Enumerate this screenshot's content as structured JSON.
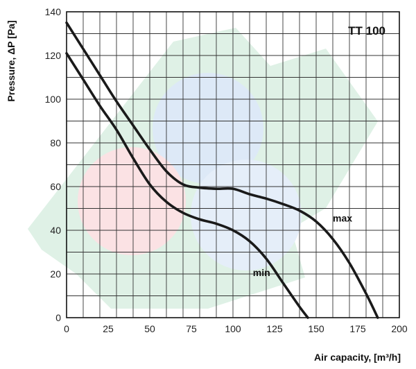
{
  "chart_data": {
    "type": "line",
    "title": "TT 100",
    "xlabel": "Air capacity, [m³/h]",
    "ylabel": "Pressure, ΔP [Pa]",
    "xlim": [
      0,
      200
    ],
    "ylim": [
      0,
      140
    ],
    "x_ticks": [
      0,
      25,
      50,
      75,
      100,
      125,
      150,
      175,
      200
    ],
    "y_ticks": [
      0,
      20,
      40,
      60,
      80,
      100,
      120,
      140
    ],
    "grid": true,
    "series": [
      {
        "name": "max",
        "color": "#1a1a1a",
        "points": [
          [
            0,
            135
          ],
          [
            10,
            123
          ],
          [
            20,
            111
          ],
          [
            30,
            99
          ],
          [
            40,
            88
          ],
          [
            50,
            77
          ],
          [
            60,
            67
          ],
          [
            70,
            61
          ],
          [
            80,
            59.5
          ],
          [
            90,
            59
          ],
          [
            100,
            59
          ],
          [
            110,
            56.5
          ],
          [
            120,
            54.5
          ],
          [
            130,
            52
          ],
          [
            140,
            49
          ],
          [
            150,
            44
          ],
          [
            160,
            36
          ],
          [
            170,
            25
          ],
          [
            180,
            11
          ],
          [
            187,
            0
          ]
        ]
      },
      {
        "name": "min",
        "color": "#1a1a1a",
        "points": [
          [
            0,
            121
          ],
          [
            10,
            109
          ],
          [
            20,
            97
          ],
          [
            30,
            86
          ],
          [
            40,
            73
          ],
          [
            50,
            61
          ],
          [
            60,
            53
          ],
          [
            70,
            48
          ],
          [
            80,
            45
          ],
          [
            90,
            43
          ],
          [
            100,
            40
          ],
          [
            110,
            35
          ],
          [
            120,
            27
          ],
          [
            130,
            16
          ],
          [
            140,
            5
          ],
          [
            145,
            0
          ]
        ]
      }
    ],
    "series_label_positions": {
      "max": {
        "x": 160,
        "y": 44
      },
      "min": {
        "x": 112,
        "y": 19
      }
    }
  }
}
